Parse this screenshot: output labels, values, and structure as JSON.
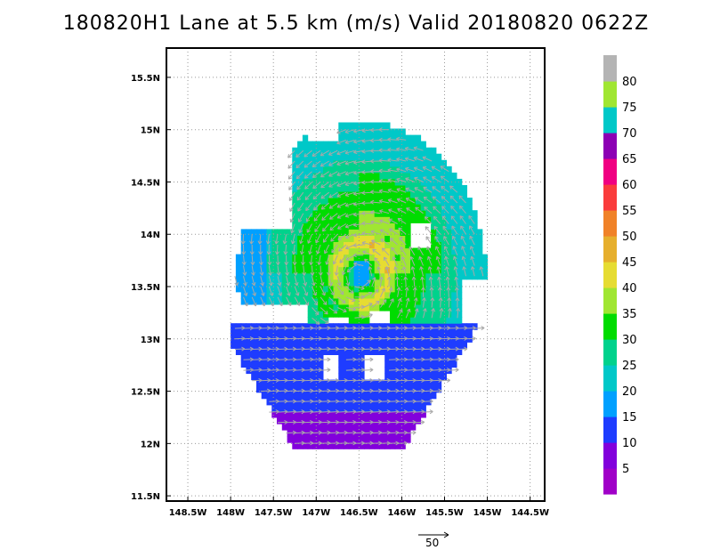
{
  "title": "180820H1 Lane at 5.5 km (m/s) Valid 20180820 0622Z",
  "map": {
    "lat_labels": [
      "15.5N",
      "15N",
      "14.5N",
      "14N",
      "13.5N",
      "13N",
      "12.5N",
      "12N",
      "11.5N"
    ],
    "lat_values": [
      15.5,
      15.0,
      14.5,
      14.0,
      13.5,
      13.0,
      12.5,
      12.0,
      11.5
    ],
    "lon_labels": [
      "148.5W",
      "148W",
      "147.5W",
      "147W",
      "146.5W",
      "146W",
      "145.5W",
      "145W",
      "144.5W"
    ],
    "lon_values": [
      -148.5,
      -148.0,
      -147.5,
      -147.0,
      -146.5,
      -146.0,
      -145.5,
      -145.0,
      -144.5
    ],
    "lon_range": [
      -148.75,
      -144.33
    ],
    "lat_range": [
      11.45,
      15.78
    ],
    "center": {
      "lon": -146.5,
      "lat": 13.6
    }
  },
  "colorbar": {
    "labels": [
      "5",
      "10",
      "15",
      "20",
      "25",
      "30",
      "35",
      "40",
      "45",
      "50",
      "55",
      "60",
      "65",
      "70",
      "75",
      "80"
    ],
    "colors": [
      "#a000c8",
      "#8200dc",
      "#1e3cff",
      "#00a0ff",
      "#00c8c8",
      "#00d28c",
      "#00dc00",
      "#a0e632",
      "#e6dc32",
      "#e6af2d",
      "#f08228",
      "#fa3c3c",
      "#f00082",
      "#8c00b4",
      "#00c8c8",
      "#a0e632",
      "#b4b4b4"
    ]
  },
  "reference_vector": {
    "label": "50"
  },
  "colors": {
    "grid": "#999999",
    "vector": "#a8a8a8",
    "frame": "#000000"
  }
}
